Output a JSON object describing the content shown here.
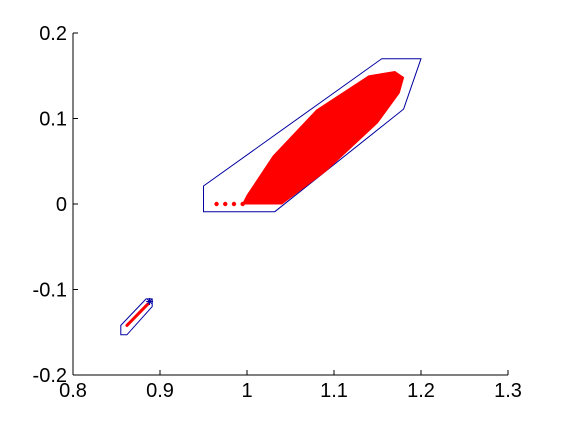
{
  "chart_data": {
    "type": "scatter",
    "title": "",
    "xlabel": "",
    "ylabel": "",
    "xlim": [
      0.8,
      1.3
    ],
    "ylim": [
      -0.2,
      0.2
    ],
    "grid": false,
    "x_ticks": [
      "0.8",
      "0.9",
      "1",
      "1.1",
      "1.2",
      "1.3"
    ],
    "y_ticks": [
      "-0.2",
      "-0.1",
      "0",
      "0.1",
      "0.2"
    ],
    "colors": {
      "region": "#ff0000",
      "hull": "#0000a0",
      "axis": "#000000"
    },
    "upper_region": {
      "tail_points": [
        {
          "x": 0.965,
          "y": 0.0
        },
        {
          "x": 0.975,
          "y": 0.0
        },
        {
          "x": 0.985,
          "y": 0.0
        },
        {
          "x": 0.995,
          "y": 0.0
        }
      ],
      "outline": [
        {
          "x": 0.995,
          "y": 0.0
        },
        {
          "x": 1.04,
          "y": 0.0
        },
        {
          "x": 1.09,
          "y": 0.038
        },
        {
          "x": 1.15,
          "y": 0.095
        },
        {
          "x": 1.175,
          "y": 0.13
        },
        {
          "x": 1.18,
          "y": 0.148
        },
        {
          "x": 1.17,
          "y": 0.155
        },
        {
          "x": 1.14,
          "y": 0.15
        },
        {
          "x": 1.08,
          "y": 0.11
        },
        {
          "x": 1.03,
          "y": 0.056
        },
        {
          "x": 1.0,
          "y": 0.01
        }
      ]
    },
    "upper_hull": [
      {
        "x": 0.95,
        "y": 0.021
      },
      {
        "x": 1.155,
        "y": 0.17
      },
      {
        "x": 1.2,
        "y": 0.17
      },
      {
        "x": 1.18,
        "y": 0.111
      },
      {
        "x": 1.032,
        "y": -0.009
      },
      {
        "x": 0.95,
        "y": -0.009
      }
    ],
    "lower_region": {
      "segment": [
        {
          "x": 0.862,
          "y": -0.142
        },
        {
          "x": 0.886,
          "y": -0.117
        }
      ],
      "marker": {
        "x": 0.888,
        "y": -0.114
      }
    },
    "lower_hull": [
      {
        "x": 0.855,
        "y": -0.142
      },
      {
        "x": 0.884,
        "y": -0.111
      },
      {
        "x": 0.891,
        "y": -0.111
      },
      {
        "x": 0.891,
        "y": -0.12
      },
      {
        "x": 0.862,
        "y": -0.153
      },
      {
        "x": 0.855,
        "y": -0.153
      }
    ]
  }
}
